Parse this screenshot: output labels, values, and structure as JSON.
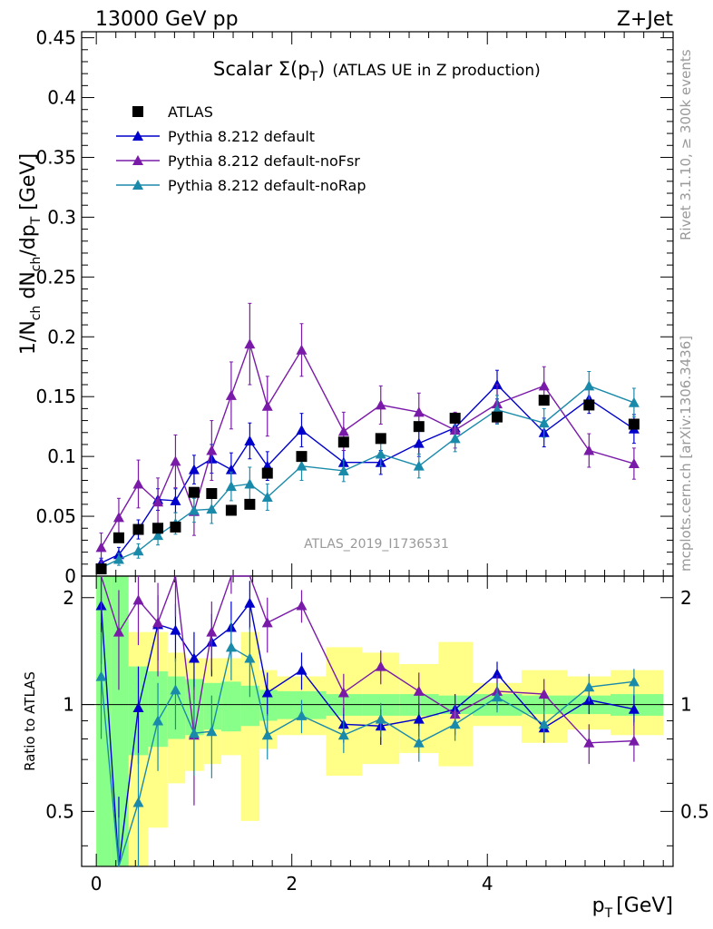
{
  "header": {
    "left": "13000 GeV pp",
    "right": "Z+Jet"
  },
  "side_labels": {
    "rivet": "Rivet 3.1.10, ≥ 300k events",
    "mcplots": "mcplots.cern.ch [arXiv:1306.3436]"
  },
  "chart_data": {
    "type": "scatter",
    "title_main": "Scalar Σ(p",
    "title_sub": "T",
    "title_close": ")",
    "title_extra": "(ATLAS UE in Z production)",
    "watermark": "ATLAS_2019_I1736531",
    "xlabel": "p",
    "xlabel_sub": "T",
    "xlabel_unit": "[GeV]",
    "ylabel": "1/N",
    "ylabel_parts": [
      "ch",
      " dN",
      "ch",
      "/dp",
      "T",
      " [GeV]"
    ],
    "ratio_ylabel": "Ratio to ATLAS",
    "xlim": [
      -0.15,
      5.9
    ],
    "ylim": [
      0,
      0.455
    ],
    "ratio_ylim": [
      0.35,
      2.3
    ],
    "x_ticks": [
      "0",
      "2",
      "4"
    ],
    "y_ticks": [
      "0",
      "0.05",
      "0.1",
      "0.15",
      "0.2",
      "0.25",
      "0.3",
      "0.35",
      "0.4",
      "0.45"
    ],
    "ratio_ticks": [
      "0.5",
      "1",
      "2"
    ],
    "x": [
      0.05,
      0.23,
      0.43,
      0.63,
      0.81,
      1.0,
      1.18,
      1.38,
      1.57,
      1.75,
      2.1,
      2.53,
      2.91,
      3.3,
      3.67,
      4.1,
      4.58,
      5.04,
      5.5
    ],
    "data": {
      "name": "ATLAS",
      "color": "#000000",
      "values": [
        0.006,
        0.032,
        0.039,
        0.04,
        0.041,
        0.07,
        0.069,
        0.055,
        0.06,
        0.086,
        0.1,
        0.112,
        0.115,
        0.125,
        0.132,
        0.133,
        0.147,
        0.143,
        0.127
      ]
    },
    "series": [
      {
        "name": "Pythia 8.212 default",
        "color": "#0000cc",
        "values": [
          0.011,
          0.018,
          0.039,
          0.064,
          0.063,
          0.089,
          0.098,
          0.089,
          0.113,
          0.092,
          0.122,
          0.095,
          0.095,
          0.111,
          0.124,
          0.16,
          0.12,
          0.148,
          0.123
        ],
        "errors": [
          0.004,
          0.006,
          0.008,
          0.009,
          0.01,
          0.012,
          0.012,
          0.014,
          0.015,
          0.012,
          0.014,
          0.01,
          0.01,
          0.011,
          0.012,
          0.012,
          0.012,
          0.012,
          0.012
        ],
        "ratio": [
          1.9,
          0.3,
          0.98,
          1.68,
          1.62,
          1.35,
          1.5,
          1.65,
          1.93,
          1.08,
          1.25,
          0.88,
          0.87,
          0.91,
          0.97,
          1.22,
          0.86,
          1.03,
          0.97
        ],
        "ratio_errors": [
          0.6,
          0.25,
          0.3,
          0.35,
          0.3,
          0.25,
          0.3,
          0.3,
          0.3,
          0.15,
          0.15,
          0.1,
          0.1,
          0.1,
          0.1,
          0.1,
          0.08,
          0.09,
          0.1
        ]
      },
      {
        "name": "Pythia 8.212 default-noFsr",
        "color": "#7a1aa8",
        "values": [
          0.024,
          0.049,
          0.077,
          0.062,
          0.096,
          0.054,
          0.105,
          0.151,
          0.194,
          0.142,
          0.189,
          0.121,
          0.143,
          0.137,
          0.122,
          0.144,
          0.159,
          0.105,
          0.094
        ],
        "errors": [
          0.012,
          0.016,
          0.02,
          0.02,
          0.022,
          0.02,
          0.025,
          0.028,
          0.034,
          0.025,
          0.022,
          0.016,
          0.016,
          0.016,
          0.015,
          0.016,
          0.016,
          0.014,
          0.013
        ],
        "ratio": [
          2.5,
          1.6,
          1.97,
          1.7,
          2.32,
          0.82,
          1.6,
          2.5,
          3.0,
          1.7,
          1.9,
          1.08,
          1.28,
          1.09,
          0.94,
          1.09,
          1.07,
          0.78,
          0.79
        ],
        "ratio_errors": [
          0.8,
          0.5,
          0.5,
          0.5,
          0.55,
          0.3,
          0.35,
          0.45,
          0.5,
          0.3,
          0.2,
          0.14,
          0.14,
          0.14,
          0.12,
          0.12,
          0.11,
          0.1,
          0.1
        ]
      },
      {
        "name": "Pythia 8.212 default-noRap",
        "color": "#1a8aaa",
        "values": [
          0.007,
          0.014,
          0.021,
          0.034,
          0.044,
          0.055,
          0.056,
          0.075,
          0.077,
          0.066,
          0.092,
          0.088,
          0.102,
          0.092,
          0.115,
          0.139,
          0.128,
          0.159,
          0.145
        ],
        "errors": [
          0.003,
          0.005,
          0.006,
          0.008,
          0.009,
          0.01,
          0.012,
          0.012,
          0.014,
          0.011,
          0.012,
          0.009,
          0.01,
          0.01,
          0.011,
          0.012,
          0.012,
          0.012,
          0.012
        ],
        "ratio": [
          1.2,
          0.33,
          0.53,
          0.9,
          1.1,
          0.83,
          0.84,
          1.45,
          1.35,
          0.82,
          0.93,
          0.82,
          0.91,
          0.78,
          0.88,
          1.05,
          0.88,
          1.12,
          1.16
        ],
        "ratio_errors": [
          0.4,
          0.15,
          0.2,
          0.25,
          0.25,
          0.2,
          0.22,
          0.28,
          0.3,
          0.12,
          0.1,
          0.09,
          0.1,
          0.09,
          0.09,
          0.1,
          0.09,
          0.1,
          0.1
        ]
      }
    ],
    "bands": {
      "edges": [
        0.0,
        0.15,
        0.33,
        0.53,
        0.73,
        0.91,
        1.1,
        1.28,
        1.48,
        1.67,
        1.85,
        2.35,
        2.72,
        3.1,
        3.5,
        3.85,
        4.35,
        4.82,
        5.26,
        5.8
      ],
      "stat_lo": [
        0.0,
        0.0,
        0.72,
        0.76,
        0.8,
        0.82,
        0.85,
        0.84,
        0.87,
        0.9,
        0.91,
        0.93,
        0.93,
        0.93,
        0.94,
        0.93,
        0.94,
        0.94,
        0.93
      ],
      "stat_hi": [
        3.0,
        2.3,
        1.28,
        1.24,
        1.2,
        1.18,
        1.15,
        1.16,
        1.13,
        1.1,
        1.09,
        1.07,
        1.07,
        1.07,
        1.06,
        1.07,
        1.06,
        1.06,
        1.07
      ],
      "sys_lo": [
        0.0,
        0.0,
        0.35,
        0.45,
        0.6,
        0.65,
        0.68,
        0.72,
        0.47,
        0.75,
        0.82,
        0.63,
        0.68,
        0.73,
        0.67,
        0.87,
        0.78,
        0.85,
        0.82
      ],
      "sys_hi": [
        3.0,
        2.3,
        1.6,
        1.6,
        1.4,
        1.35,
        1.35,
        1.35,
        1.6,
        1.25,
        1.2,
        1.45,
        1.4,
        1.3,
        1.5,
        1.15,
        1.25,
        1.2,
        1.25
      ]
    }
  }
}
